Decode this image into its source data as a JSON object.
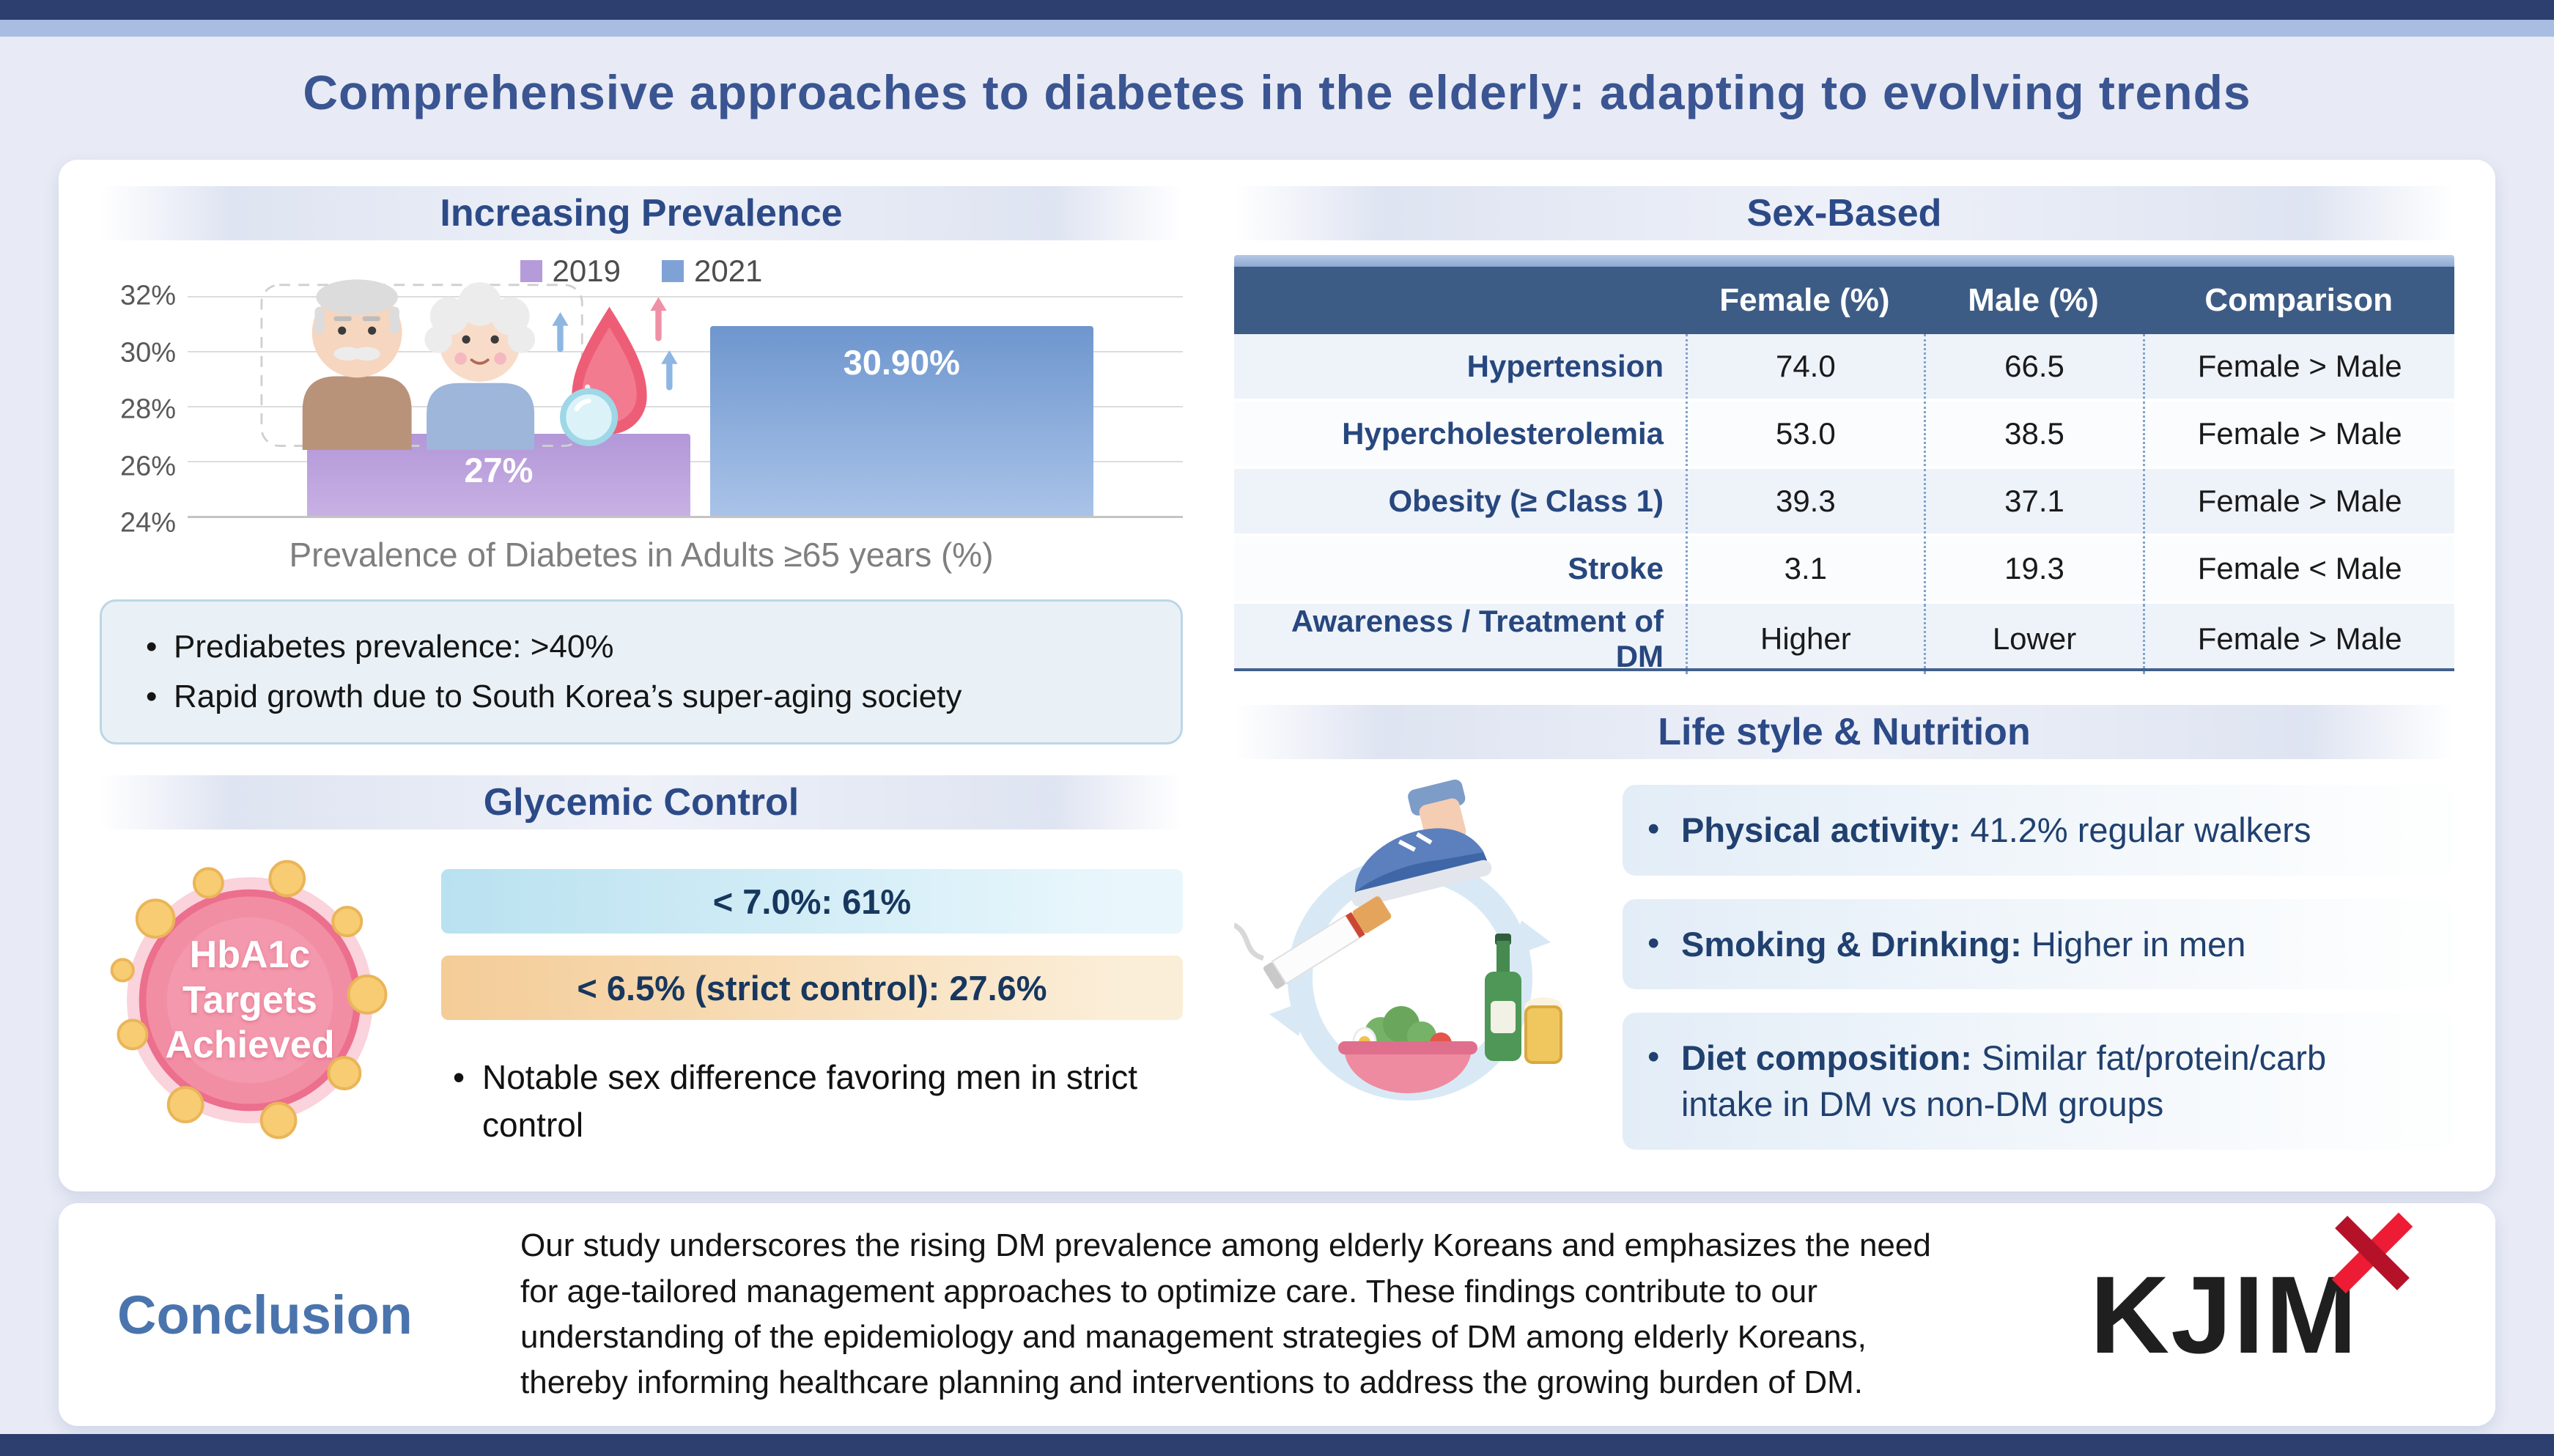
{
  "header": {
    "title": "Comprehensive approaches to diabetes in the elderly: adapting to evolving trends"
  },
  "prevalence": {
    "section_title": "Increasing Prevalence",
    "note_bullets": [
      "Prediabetes prevalence: >40%",
      "Rapid growth due to South Korea’s super-aging society"
    ]
  },
  "chart_data": {
    "type": "bar",
    "title": "Prevalence of Diabetes in Adults ≥65 years (%)",
    "xlabel": "Prevalence of Diabetes in Adults ≥65 years (%)",
    "ylabel": "",
    "categories": [
      "2019",
      "2021"
    ],
    "values": [
      27,
      30.9
    ],
    "value_labels": [
      "27%",
      "30.90%"
    ],
    "ylim": [
      24,
      32
    ],
    "yticks": [
      "32%",
      "30%",
      "28%",
      "26%",
      "24%"
    ],
    "bar_colors": [
      "#b59bd9",
      "#7fa2d6"
    ],
    "grid": true,
    "legend_position": "top"
  },
  "glycemic": {
    "section_title": "Glycemic Control",
    "circle_text": "HbA1c\nTargets\nAchieved",
    "target_bars": [
      {
        "label": "< 7.0%: 61%",
        "color": "#bfe3f1"
      },
      {
        "label": "< 6.5% (strict control): 27.6%",
        "color": "#f6cf9e"
      }
    ],
    "bullet": "Notable sex difference favoring men in strict control"
  },
  "sex_based": {
    "section_title": "Sex-Based",
    "columns": [
      "",
      "Female (%)",
      "Male (%)",
      "Comparison"
    ],
    "rows": [
      {
        "label": "Hypertension",
        "female": "74.0",
        "male": "66.5",
        "comparison": "Female > Male"
      },
      {
        "label": "Hypercholesterolemia",
        "female": "53.0",
        "male": "38.5",
        "comparison": "Female > Male"
      },
      {
        "label": "Obesity (≥ Class 1)",
        "female": "39.3",
        "male": "37.1",
        "comparison": "Female > Male"
      },
      {
        "label": "Stroke",
        "female": "3.1",
        "male": "19.3",
        "comparison": "Female < Male"
      },
      {
        "label": "Awareness / Treatment of DM",
        "female": "Higher",
        "male": "Lower",
        "comparison": "Female > Male"
      }
    ]
  },
  "lifestyle": {
    "section_title": "Life style & Nutrition",
    "items": [
      {
        "lead": "Physical activity:",
        "rest": " 41.2% regular walkers"
      },
      {
        "lead": "Smoking & Drinking:",
        "rest": " Higher in men"
      },
      {
        "lead": "Diet composition:",
        "rest": " Similar fat/protein/carb intake in DM vs non-DM groups"
      }
    ]
  },
  "conclusion": {
    "heading": "Conclusion",
    "text": "Our study underscores the rising DM prevalence among elderly Koreans and emphasizes the need for age-tailored management approaches to optimize care. These findings contribute to our understanding of the epidemiology and management strategies of DM among elderly Koreans, thereby informing healthcare planning and interventions to address the growing burden of DM."
  },
  "logo": {
    "text": "KJIM",
    "accent_color": "#e8243c"
  },
  "theme": {
    "top_bar": "#2d3f6e",
    "accent_strip": "#a9bde2",
    "background": "#e8ebf5",
    "title_color": "#3a5591",
    "section_title_color": "#2c4a87",
    "table_header_bg": "#3d5c85",
    "bar_2019": "#b59bd9",
    "bar_2021": "#7fa2d6",
    "hba1c_pink": "#f28ea4",
    "note_box_bg": "#e9f1f7"
  }
}
